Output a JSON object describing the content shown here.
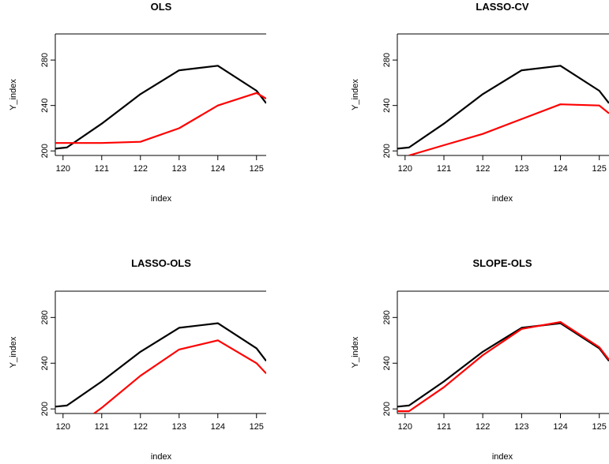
{
  "chart_data": [
    {
      "type": "line",
      "title": "OLS",
      "xlabel": "index",
      "ylabel": "Y_index",
      "xlim": [
        119.8,
        125.25
      ],
      "ylim": [
        196,
        303
      ],
      "xticks": [
        120,
        121,
        122,
        123,
        124,
        125
      ],
      "yticks": [
        200,
        240,
        280
      ],
      "series": [
        {
          "color": "#000000",
          "x": [
            119.8,
            120.1,
            121,
            122,
            123,
            124,
            125,
            125.25
          ],
          "y": [
            202,
            203,
            224,
            250,
            271,
            275,
            253,
            242
          ]
        },
        {
          "color": "#ff0000",
          "x": [
            119.8,
            120,
            121,
            122,
            123,
            124,
            125,
            125.25
          ],
          "y": [
            207,
            207,
            207,
            208,
            220,
            240,
            251,
            246
          ]
        }
      ]
    },
    {
      "type": "line",
      "title": "LASSO-CV",
      "xlabel": "index",
      "ylabel": "Y_index",
      "xlim": [
        119.8,
        125.25
      ],
      "ylim": [
        196,
        303
      ],
      "xticks": [
        120,
        121,
        122,
        123,
        124,
        125
      ],
      "yticks": [
        200,
        240,
        280
      ],
      "series": [
        {
          "color": "#000000",
          "x": [
            119.8,
            120.1,
            121,
            122,
            123,
            124,
            125,
            125.25
          ],
          "y": [
            202,
            203,
            224,
            250,
            271,
            275,
            253,
            242
          ]
        },
        {
          "color": "#ff0000",
          "x": [
            120.1,
            121,
            122,
            123,
            124,
            125,
            125.25
          ],
          "y": [
            196,
            205,
            215,
            228,
            241,
            240,
            233
          ]
        }
      ]
    },
    {
      "type": "line",
      "title": "LASSO-OLS",
      "xlabel": "index",
      "ylabel": "Y_index",
      "xlim": [
        119.8,
        125.25
      ],
      "ylim": [
        196,
        303
      ],
      "xticks": [
        120,
        121,
        122,
        123,
        124,
        125
      ],
      "yticks": [
        200,
        240,
        280
      ],
      "series": [
        {
          "color": "#000000",
          "x": [
            119.8,
            120.1,
            121,
            122,
            123,
            124,
            125,
            125.25
          ],
          "y": [
            202,
            203,
            224,
            250,
            271,
            275,
            253,
            242
          ]
        },
        {
          "color": "#ff0000",
          "x": [
            120.8,
            121,
            122,
            123,
            124,
            125,
            125.25
          ],
          "y": [
            196,
            201,
            229,
            252,
            260,
            240,
            231
          ]
        }
      ]
    },
    {
      "type": "line",
      "title": "SLOPE-OLS",
      "xlabel": "index",
      "ylabel": "Y_index",
      "xlim": [
        119.8,
        125.25
      ],
      "ylim": [
        196,
        303
      ],
      "xticks": [
        120,
        121,
        122,
        123,
        124,
        125
      ],
      "yticks": [
        200,
        240,
        280
      ],
      "series": [
        {
          "color": "#000000",
          "x": [
            119.8,
            120.1,
            121,
            122,
            123,
            124,
            125,
            125.25
          ],
          "y": [
            202,
            203,
            224,
            250,
            271,
            275,
            253,
            242
          ]
        },
        {
          "color": "#ff0000",
          "x": [
            119.8,
            120.1,
            121,
            122,
            123,
            124,
            125,
            125.25
          ],
          "y": [
            198,
            198,
            219,
            247,
            270,
            276,
            254,
            243
          ]
        }
      ]
    }
  ]
}
